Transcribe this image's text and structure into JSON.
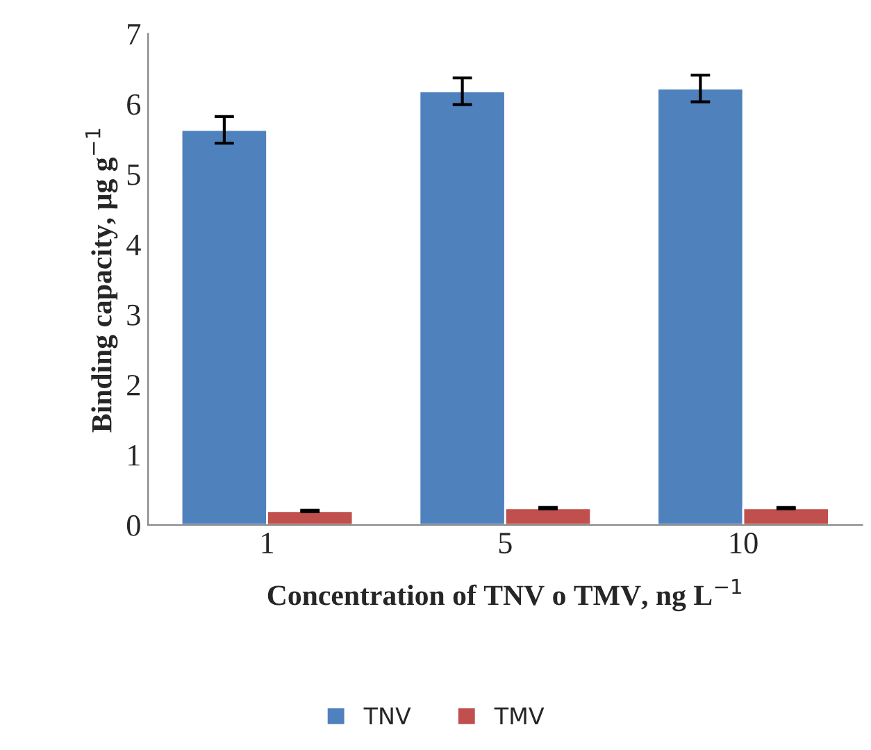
{
  "chart_data": {
    "type": "bar",
    "xlabel": "Concentration of TNV o TMV, ng L$^{−1}$",
    "ylabel": "Binding capacity, µg g$^{−1}$",
    "categories": [
      "1",
      "5",
      "10"
    ],
    "series": [
      {
        "name": "TNV",
        "color": "#4f81bd",
        "values": [
          5.63,
          6.18,
          6.22
        ],
        "errors": [
          0.19,
          0.19,
          0.19
        ]
      },
      {
        "name": "TMV",
        "color": "#c0504d",
        "values": [
          0.2,
          0.24,
          0.24
        ],
        "errors": [
          0.01,
          0.01,
          0.01
        ]
      }
    ],
    "ylim": [
      0,
      7
    ],
    "yticks": [
      0,
      1,
      2,
      3,
      4,
      5,
      6,
      7
    ],
    "legend": "bottom",
    "grid": false
  }
}
